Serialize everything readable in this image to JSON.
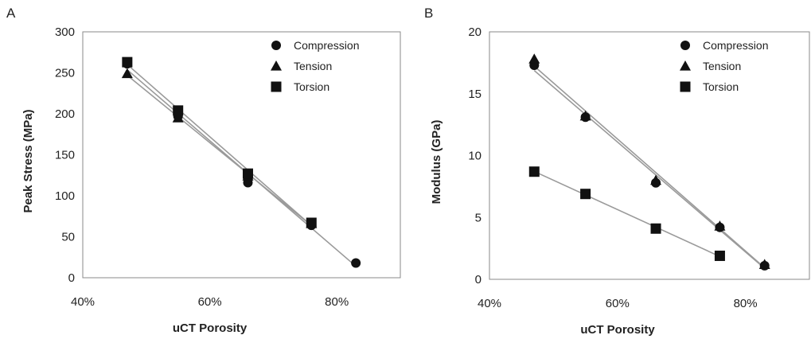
{
  "chart_data": [
    {
      "type": "scatter",
      "panel_label": "A",
      "xlabel": "uCT Porosity",
      "ylabel": "Peak Stress (MPa)",
      "xlim": [
        0.4,
        0.9
      ],
      "ylim": [
        0,
        300
      ],
      "x_ticks": [
        {
          "value": 0.4,
          "label": "40%"
        },
        {
          "value": 0.6,
          "label": "60%"
        },
        {
          "value": 0.8,
          "label": "80%"
        }
      ],
      "y_ticks": [
        {
          "value": 0,
          "label": "0"
        },
        {
          "value": 50,
          "label": "50"
        },
        {
          "value": 100,
          "label": "100"
        },
        {
          "value": 150,
          "label": "150"
        },
        {
          "value": 200,
          "label": "200"
        },
        {
          "value": 250,
          "label": "250"
        },
        {
          "value": 300,
          "label": "300"
        }
      ],
      "legend_position": "top-right",
      "grid": false,
      "series": [
        {
          "name": "Compression",
          "marker": "circle",
          "x": [
            0.47,
            0.55,
            0.66,
            0.76,
            0.83
          ],
          "y": [
            261,
            197,
            116,
            64,
            18
          ]
        },
        {
          "name": "Tension",
          "marker": "triangle",
          "x": [
            0.47,
            0.55,
            0.66,
            0.76
          ],
          "y": [
            249,
            195,
            124,
            66
          ]
        },
        {
          "name": "Torsion",
          "marker": "square",
          "x": [
            0.47,
            0.55,
            0.66,
            0.76
          ],
          "y": [
            263,
            204,
            127,
            67
          ]
        }
      ]
    },
    {
      "type": "scatter",
      "panel_label": "B",
      "xlabel": "uCT Porosity",
      "ylabel": "Modulus (GPa)",
      "xlim": [
        0.4,
        0.9
      ],
      "ylim": [
        0,
        20
      ],
      "x_ticks": [
        {
          "value": 0.4,
          "label": "40%"
        },
        {
          "value": 0.6,
          "label": "60%"
        },
        {
          "value": 0.8,
          "label": "80%"
        }
      ],
      "y_ticks": [
        {
          "value": 0,
          "label": "0"
        },
        {
          "value": 5,
          "label": "5"
        },
        {
          "value": 10,
          "label": "10"
        },
        {
          "value": 15,
          "label": "15"
        },
        {
          "value": 20,
          "label": "20"
        }
      ],
      "legend_position": "top-right",
      "grid": false,
      "series": [
        {
          "name": "Compression",
          "marker": "circle",
          "x": [
            0.47,
            0.55,
            0.66,
            0.76,
            0.83
          ],
          "y": [
            17.3,
            13.1,
            7.8,
            4.2,
            1.1
          ]
        },
        {
          "name": "Tension",
          "marker": "triangle",
          "x": [
            0.47,
            0.55,
            0.66,
            0.76,
            0.83
          ],
          "y": [
            17.8,
            13.2,
            8.0,
            4.3,
            1.2
          ]
        },
        {
          "name": "Torsion",
          "marker": "square",
          "x": [
            0.47,
            0.55,
            0.66,
            0.76
          ],
          "y": [
            8.7,
            6.9,
            4.1,
            1.9
          ]
        }
      ]
    }
  ],
  "colors": {
    "marker": "#111111",
    "trendline": "#9a9a9a",
    "axis": "#8a8a8a"
  }
}
